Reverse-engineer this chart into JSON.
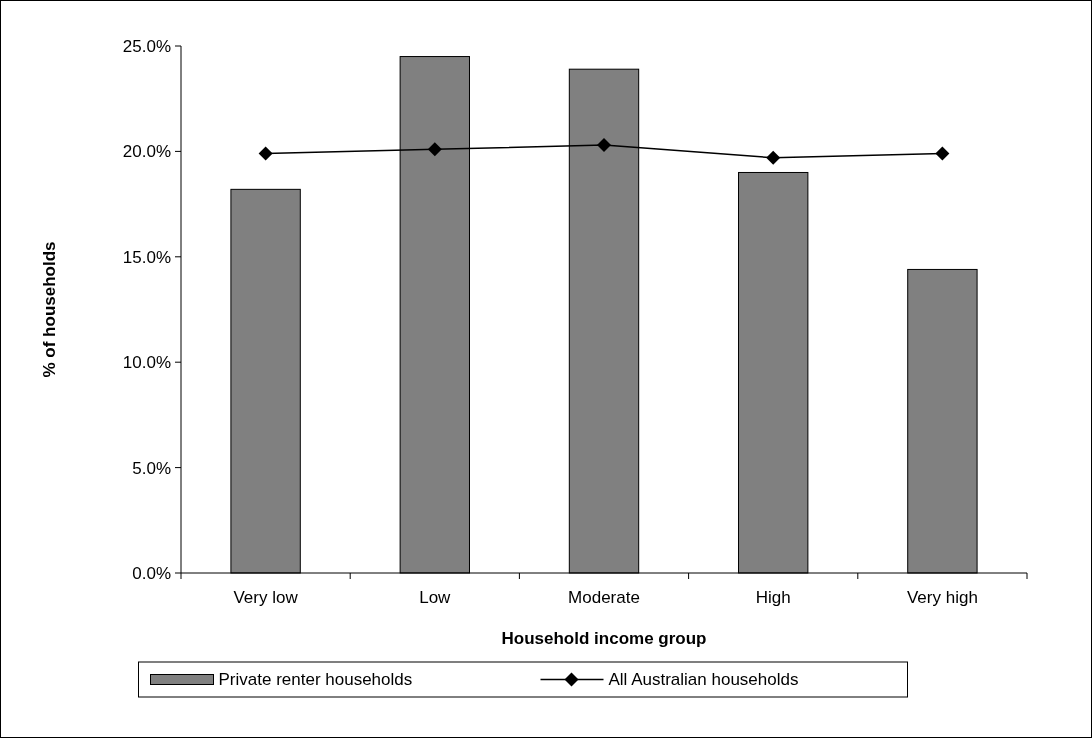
{
  "chart_data": {
    "type": "bar",
    "xlabel": "Household income group",
    "ylabel": "% of households",
    "categories": [
      "Very low",
      "Low",
      "Moderate",
      "High",
      "Very high"
    ],
    "series": [
      {
        "name": "Private renter households",
        "color": "#808080",
        "values": [
          18.2,
          24.5,
          23.9,
          19.0,
          14.4
        ]
      },
      {
        "name": "All Australian households",
        "type": "line",
        "color": "#000000",
        "marker": "diamond",
        "values": [
          19.9,
          20.1,
          20.3,
          19.7,
          19.9
        ]
      }
    ],
    "ylim": [
      0,
      25
    ],
    "yticks": [
      {
        "value": 0,
        "label": "0.0%"
      },
      {
        "value": 5,
        "label": "5.0%"
      },
      {
        "value": 10,
        "label": "10.0%"
      },
      {
        "value": 15,
        "label": "15.0%"
      },
      {
        "value": 20,
        "label": "20.0%"
      },
      {
        "value": 25,
        "label": "25.0%"
      }
    ],
    "grid": false,
    "legend": "bottom"
  }
}
